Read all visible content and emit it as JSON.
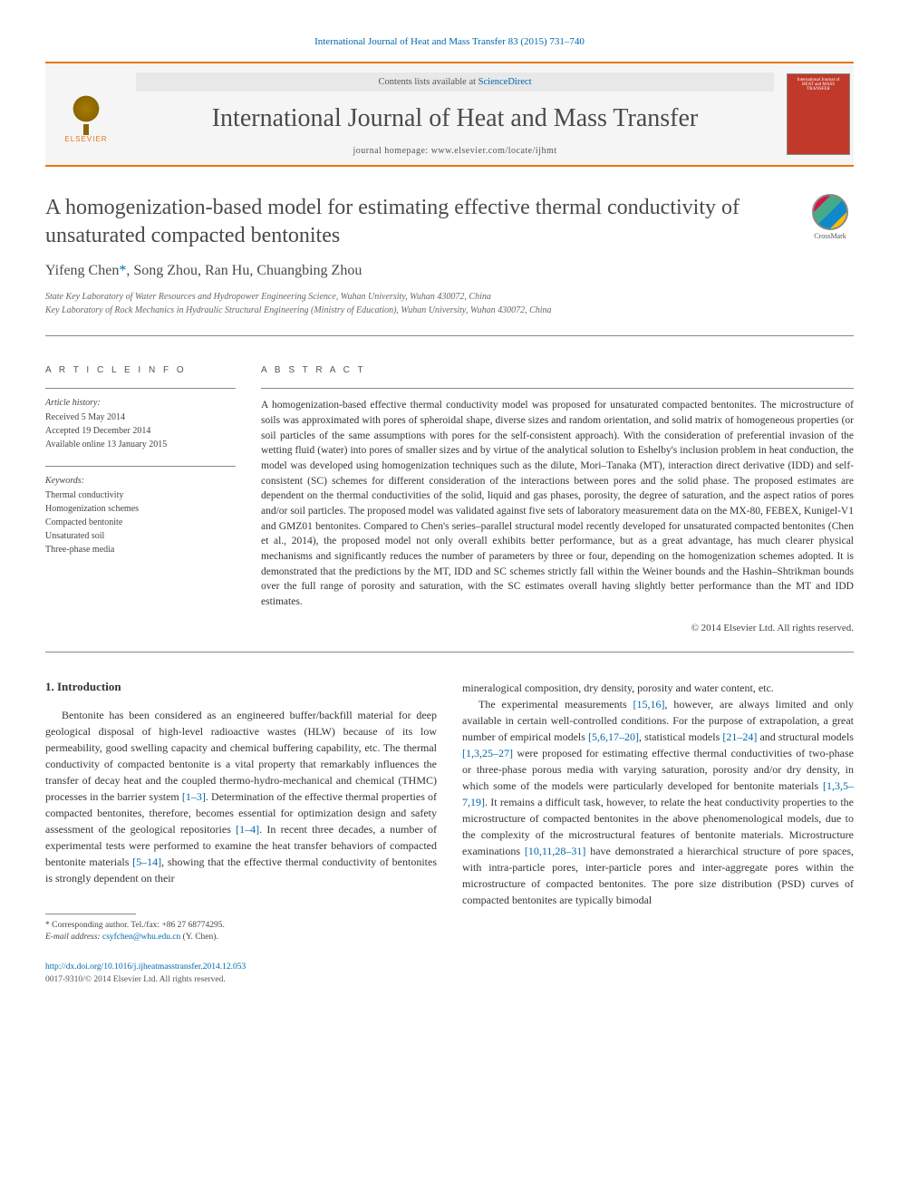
{
  "citation": "International Journal of Heat and Mass Transfer 83 (2015) 731–740",
  "header": {
    "contents_prefix": "Contents lists available at ",
    "contents_link": "ScienceDirect",
    "journal_name": "International Journal of Heat and Mass Transfer",
    "homepage_prefix": "journal homepage: ",
    "homepage_url": "www.elsevier.com/locate/ijhmt",
    "publisher": "ELSEVIER",
    "cover_line1": "International Journal of",
    "cover_line2": "HEAT and MASS TRANSFER"
  },
  "article": {
    "title": "A homogenization-based model for estimating effective thermal conductivity of unsaturated compacted bentonites",
    "crossmark_label": "CrossMark",
    "authors": "Yifeng Chen",
    "author_mark": "*",
    "authors_rest": ", Song Zhou, Ran Hu, Chuangbing Zhou",
    "affiliation1": "State Key Laboratory of Water Resources and Hydropower Engineering Science, Wuhan University, Wuhan 430072, China",
    "affiliation2": "Key Laboratory of Rock Mechanics in Hydraulic Structural Engineering (Ministry of Education), Wuhan University, Wuhan 430072, China"
  },
  "info": {
    "heading": "A R T I C L E   I N F O",
    "history_label": "Article history:",
    "received": "Received 5 May 2014",
    "accepted": "Accepted 19 December 2014",
    "online": "Available online 13 January 2015",
    "keywords_label": "Keywords:",
    "keywords": [
      "Thermal conductivity",
      "Homogenization schemes",
      "Compacted bentonite",
      "Unsaturated soil",
      "Three-phase media"
    ]
  },
  "abstract": {
    "heading": "A B S T R A C T",
    "text": "A homogenization-based effective thermal conductivity model was proposed for unsaturated compacted bentonites. The microstructure of soils was approximated with pores of spheroidal shape, diverse sizes and random orientation, and solid matrix of homogeneous properties (or soil particles of the same assumptions with pores for the self-consistent approach). With the consideration of preferential invasion of the wetting fluid (water) into pores of smaller sizes and by virtue of the analytical solution to Eshelby's inclusion problem in heat conduction, the model was developed using homogenization techniques such as the dilute, Mori–Tanaka (MT), interaction direct derivative (IDD) and self-consistent (SC) schemes for different consideration of the interactions between pores and the solid phase. The proposed estimates are dependent on the thermal conductivities of the solid, liquid and gas phases, porosity, the degree of saturation, and the aspect ratios of pores and/or soil particles. The proposed model was validated against five sets of laboratory measurement data on the MX-80, FEBEX, Kunigel-V1 and GMZ01 bentonites. Compared to Chen's series–parallel structural model recently developed for unsaturated compacted bentonites (Chen et al., 2014), the proposed model not only overall exhibits better performance, but as a great advantage, has much clearer physical mechanisms and significantly reduces the number of parameters by three or four, depending on the homogenization schemes adopted. It is demonstrated that the predictions by the MT, IDD and SC schemes strictly fall within the Weiner bounds and the Hashin–Shtrikman bounds over the full range of porosity and saturation, with the SC estimates overall having slightly better performance than the MT and IDD estimates.",
    "copyright": "© 2014 Elsevier Ltd. All rights reserved."
  },
  "body": {
    "section1_heading": "1. Introduction",
    "para1_a": "Bentonite has been considered as an engineered buffer/backfill material for deep geological disposal of high-level radioactive wastes (HLW) because of its low permeability, good swelling capacity and chemical buffering capability, etc. The thermal conductivity of compacted bentonite is a vital property that remarkably influences the transfer of decay heat and the coupled thermo-hydro-mechanical and chemical (THMC) processes in the barrier system ",
    "ref1": "[1–3]",
    "para1_b": ". Determination of the effective thermal properties of compacted bentonites, therefore, becomes essential for optimization design and safety assessment of the geological repositories ",
    "ref2": "[1–4]",
    "para1_c": ". In recent three decades, a number of experimental tests were performed to examine the heat transfer behaviors of compacted bentonite materials ",
    "ref3": "[5–14]",
    "para1_d": ", showing that the effective thermal conductivity of bentonites is strongly dependent on their",
    "para2_a": "mineralogical composition, dry density, porosity and water content, etc.",
    "para3_a": "The experimental measurements ",
    "ref4": "[15,16]",
    "para3_b": ", however, are always limited and only available in certain well-controlled conditions. For the purpose of extrapolation, a great number of empirical models ",
    "ref5": "[5,6,17–20]",
    "para3_c": ", statistical models ",
    "ref6": "[21–24]",
    "para3_d": " and structural models ",
    "ref7": "[1,3,25–27]",
    "para3_e": " were proposed for estimating effective thermal conductivities of two-phase or three-phase porous media with varying saturation, porosity and/or dry density, in which some of the models were particularly developed for bentonite materials ",
    "ref8": "[1,3,5–7,19]",
    "para3_f": ". It remains a difficult task, however, to relate the heat conductivity properties to the microstructure of compacted bentonites in the above phenomenological models, due to the complexity of the microstructural features of bentonite materials. Microstructure examinations ",
    "ref9": "[10,11,28–31]",
    "para3_g": " have demonstrated a hierarchical structure of pore spaces, with intra-particle pores, inter-particle pores and inter-aggregate pores within the microstructure of compacted bentonites. The pore size distribution (PSD) curves of compacted bentonites are typically bimodal"
  },
  "footnote": {
    "corr_label": "* Corresponding author. Tel./fax: +86 27 68774295.",
    "email_label": "E-mail address: ",
    "email": "csyfchen@whu.edu.cn",
    "email_suffix": " (Y. Chen)."
  },
  "doi": {
    "url": "http://dx.doi.org/10.1016/j.ijheatmasstransfer.2014.12.053",
    "issn_line": "0017-9310/© 2014 Elsevier Ltd. All rights reserved."
  },
  "colors": {
    "accent": "#e8760f",
    "link": "#0066aa",
    "cover_bg": "#c0392b",
    "text": "#333333",
    "muted": "#555555"
  }
}
